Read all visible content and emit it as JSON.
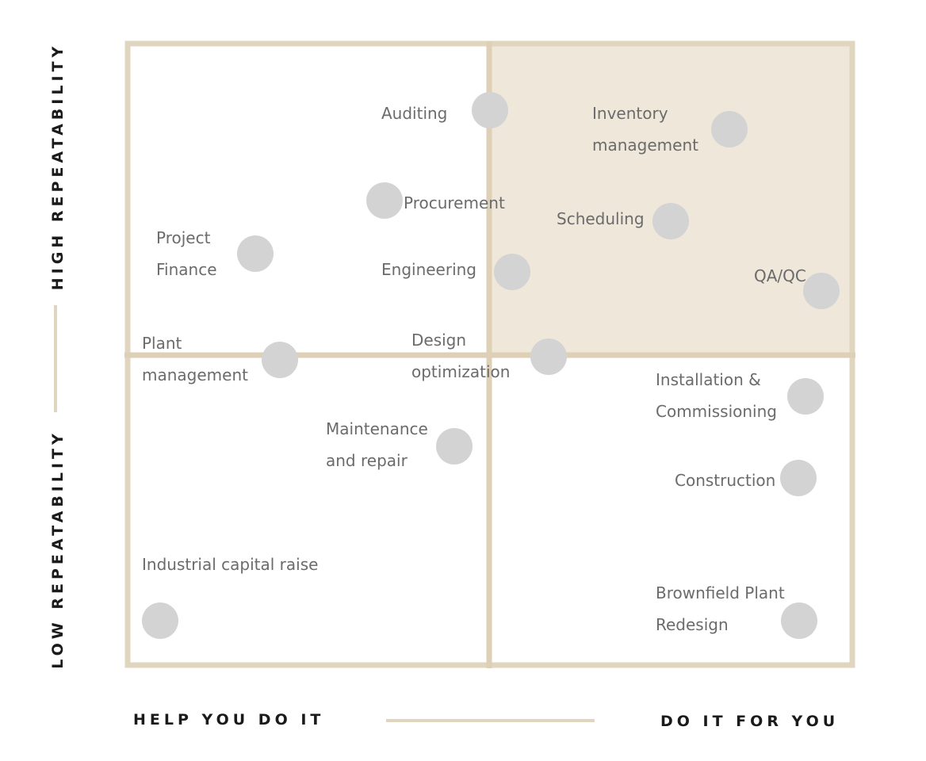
{
  "axes": {
    "x_left": "HELP YOU DO IT",
    "x_right": "DO IT FOR YOU",
    "y_high": "HIGH REPEATABILITY",
    "y_low": "LOW REPEATABILITY"
  },
  "colors": {
    "frame": "#e0d5bf",
    "divider": "#ddd0b7",
    "highlight_fill": "#eee7da",
    "highlight_border": "#d8cbb0",
    "dot": "#d3d3d3",
    "label": "#6b6b6b",
    "axis_text": "#1a1a1a"
  },
  "items": [
    {
      "id": "auditing",
      "lines": [
        "Auditing"
      ]
    },
    {
      "id": "inventory-management",
      "lines": [
        "Inventory",
        "management"
      ]
    },
    {
      "id": "procurement",
      "lines": [
        "Procurement"
      ]
    },
    {
      "id": "scheduling",
      "lines": [
        "Scheduling"
      ]
    },
    {
      "id": "project-finance",
      "lines": [
        "Project",
        "Finance"
      ]
    },
    {
      "id": "engineering",
      "lines": [
        "Engineering"
      ]
    },
    {
      "id": "qa-qc",
      "lines": [
        "QA/QC"
      ]
    },
    {
      "id": "plant-management",
      "lines": [
        "Plant",
        "management"
      ]
    },
    {
      "id": "design-optimization",
      "lines": [
        "Design",
        "optimization"
      ]
    },
    {
      "id": "installation-commissioning",
      "lines": [
        "Installation &",
        "Commissioning"
      ]
    },
    {
      "id": "maintenance-and-repair",
      "lines": [
        "Maintenance",
        "and repair"
      ]
    },
    {
      "id": "construction",
      "lines": [
        "Construction"
      ]
    },
    {
      "id": "industrial-capital-raise",
      "lines": [
        "Industrial capital raise"
      ]
    },
    {
      "id": "brownfield-plant-redesign",
      "lines": [
        "Brownfield Plant",
        "Redesign"
      ]
    }
  ]
}
